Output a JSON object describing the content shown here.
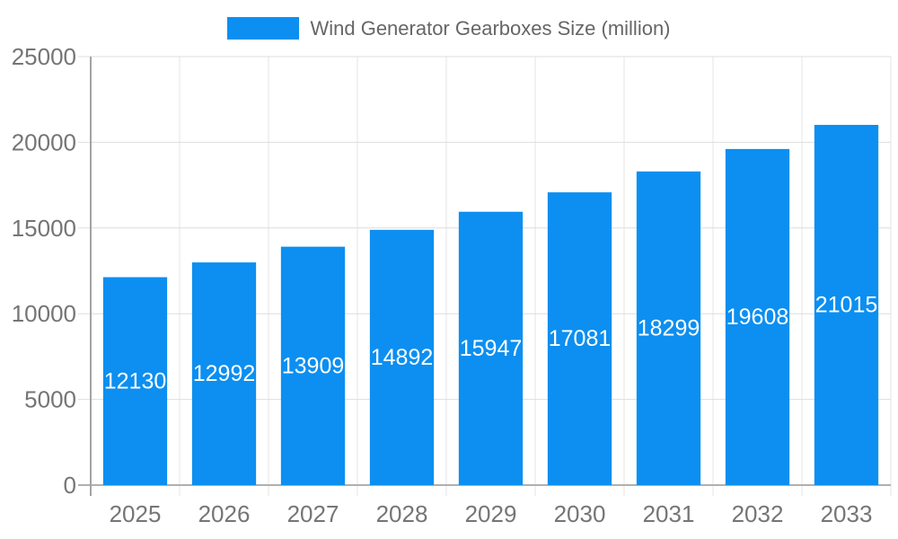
{
  "chart_data": {
    "type": "bar",
    "title": "Wind Generator Gearboxes Size (million)",
    "categories": [
      "2025",
      "2026",
      "2027",
      "2028",
      "2029",
      "2030",
      "2031",
      "2032",
      "2033"
    ],
    "values": [
      12130,
      12992,
      13909,
      14892,
      15947,
      17081,
      18299,
      19608,
      21015
    ],
    "xlabel": "",
    "ylabel": "",
    "ylim": [
      0,
      25000
    ],
    "ytick_step": 5000,
    "yticks": [
      0,
      5000,
      10000,
      15000,
      20000,
      25000
    ],
    "grid": true,
    "legend_position": "top-center",
    "value_labels": "inside-center"
  },
  "colors": {
    "bar": "#0c8ff0",
    "grid_horizontal": "#dedede",
    "grid_vertical": "#e4e4e4",
    "y_axis_line": "#a3a3a3",
    "baseline": "#b0b0b0",
    "tick": "#d6d6d6",
    "axis_label": "#757575",
    "value_label": "#ffffff",
    "legend_text": "#666666",
    "background": "#ffffff"
  }
}
